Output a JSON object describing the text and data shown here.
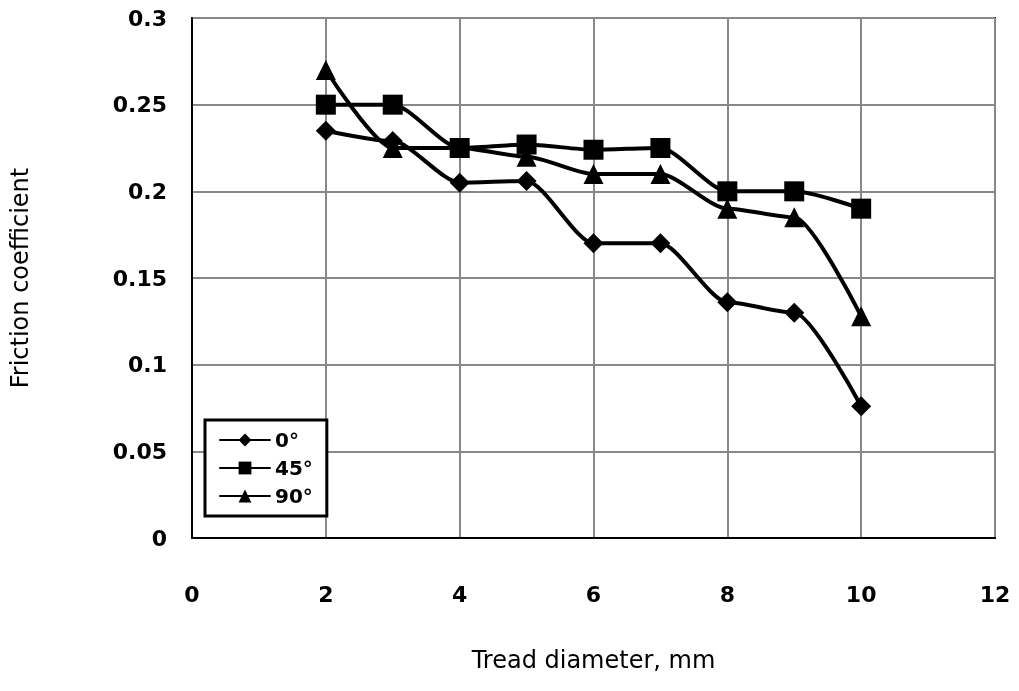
{
  "chart_data": {
    "type": "line",
    "xlabel": "Tread diameter, mm",
    "ylabel": "Friction coefficient",
    "x": [
      2,
      3,
      4,
      5,
      6,
      7,
      8,
      9,
      10
    ],
    "xlim": [
      0,
      12
    ],
    "xticks": [
      0,
      2,
      4,
      6,
      8,
      10,
      12
    ],
    "ylim": [
      0,
      0.3
    ],
    "yticks": [
      0,
      0.05,
      0.1,
      0.15,
      0.2,
      0.25,
      0.3
    ],
    "grid": true,
    "legend": "bottom left",
    "line_style": "solid",
    "series": [
      {
        "name": "0°",
        "color": "#000000",
        "marker": "diamond",
        "values": [
          0.235,
          0.229,
          0.205,
          0.206,
          0.17,
          0.17,
          0.136,
          0.13,
          0.076
        ]
      },
      {
        "name": "45°",
        "color": "#000000",
        "marker": "square",
        "values": [
          0.25,
          0.25,
          0.225,
          0.227,
          0.224,
          0.225,
          0.2,
          0.2,
          0.19
        ]
      },
      {
        "name": "90°",
        "color": "#000000",
        "marker": "triangle",
        "values": [
          0.27,
          0.225,
          0.225,
          0.22,
          0.21,
          0.21,
          0.19,
          0.185,
          0.128
        ]
      }
    ]
  }
}
